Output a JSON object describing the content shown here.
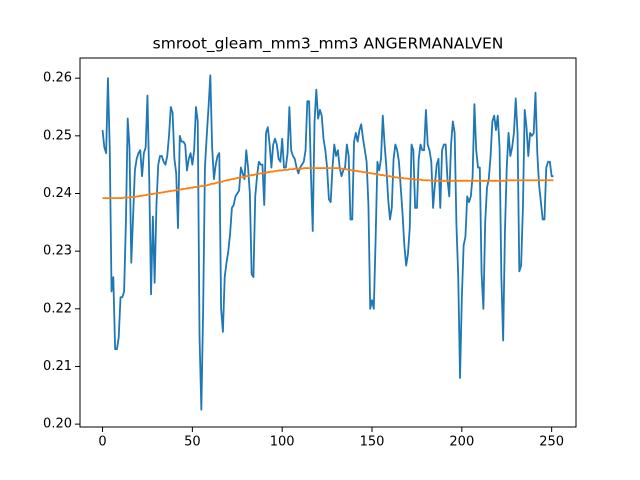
{
  "chart_data": {
    "type": "line",
    "title": "smroot_gleam_mm3_mm3 ANGERMANALVEN",
    "x": [
      0,
      1,
      2,
      3,
      4,
      5,
      6,
      7,
      8,
      9,
      10,
      11,
      12,
      13,
      14,
      15,
      16,
      17,
      18,
      19,
      20,
      21,
      22,
      23,
      24,
      25,
      26,
      27,
      28,
      29,
      30,
      31,
      32,
      33,
      34,
      35,
      36,
      37,
      38,
      39,
      40,
      41,
      42,
      43,
      44,
      45,
      46,
      47,
      48,
      49,
      50,
      51,
      52,
      53,
      54,
      55,
      56,
      57,
      58,
      59,
      60,
      61,
      62,
      63,
      64,
      65,
      66,
      67,
      68,
      69,
      70,
      71,
      72,
      73,
      74,
      75,
      76,
      77,
      78,
      79,
      80,
      81,
      82,
      83,
      84,
      85,
      86,
      87,
      88,
      89,
      90,
      91,
      92,
      93,
      94,
      95,
      96,
      97,
      98,
      99,
      100,
      101,
      102,
      103,
      104,
      105,
      106,
      107,
      108,
      109,
      110,
      111,
      112,
      113,
      114,
      115,
      116,
      117,
      118,
      119,
      120,
      121,
      122,
      123,
      124,
      125,
      126,
      127,
      128,
      129,
      130,
      131,
      132,
      133,
      134,
      135,
      136,
      137,
      138,
      139,
      140,
      141,
      142,
      143,
      144,
      145,
      146,
      147,
      148,
      149,
      150,
      151,
      152,
      153,
      154,
      155,
      156,
      157,
      158,
      159,
      160,
      161,
      162,
      163,
      164,
      165,
      166,
      167,
      168,
      169,
      170,
      171,
      172,
      173,
      174,
      175,
      176,
      177,
      178,
      179,
      180,
      181,
      182,
      183,
      184,
      185,
      186,
      187,
      188,
      189,
      190,
      191,
      192,
      193,
      194,
      195,
      196,
      197,
      198,
      199,
      200,
      201,
      202,
      203,
      204,
      205,
      206,
      207,
      208,
      209,
      210,
      211,
      212,
      213,
      214,
      215,
      216,
      217,
      218,
      219,
      220,
      221,
      222,
      223,
      224,
      225,
      226,
      227,
      228,
      229,
      230,
      231,
      232,
      233,
      234,
      235,
      236,
      237,
      238,
      239,
      240,
      241,
      242,
      243,
      244,
      245,
      246,
      247,
      248,
      249,
      250,
      251
    ],
    "series": [
      {
        "color": "#1f77b4",
        "values": [
          0.251,
          0.248,
          0.247,
          0.26,
          0.248,
          0.223,
          0.2255,
          0.213,
          0.213,
          0.215,
          0.222,
          0.222,
          0.223,
          0.235,
          0.253,
          0.248,
          0.228,
          0.236,
          0.244,
          0.246,
          0.247,
          0.2475,
          0.243,
          0.247,
          0.248,
          0.257,
          0.2425,
          0.2225,
          0.236,
          0.2245,
          0.238,
          0.245,
          0.2465,
          0.2465,
          0.2455,
          0.245,
          0.2465,
          0.25,
          0.255,
          0.254,
          0.246,
          0.2435,
          0.234,
          0.25,
          0.249,
          0.249,
          0.2485,
          0.244,
          0.246,
          0.247,
          0.245,
          0.2475,
          0.255,
          0.2525,
          0.215,
          0.2025,
          0.22,
          0.2445,
          0.25,
          0.255,
          0.2605,
          0.248,
          0.2425,
          0.245,
          0.2465,
          0.247,
          0.22,
          0.216,
          0.2255,
          0.228,
          0.23,
          0.233,
          0.2375,
          0.238,
          0.2395,
          0.24,
          0.2405,
          0.2445,
          0.2435,
          0.2425,
          0.2475,
          0.2445,
          0.24,
          0.226,
          0.2255,
          0.2395,
          0.243,
          0.2455,
          0.245,
          0.245,
          0.238,
          0.2505,
          0.2515,
          0.2485,
          0.2445,
          0.2485,
          0.2495,
          0.2485,
          0.246,
          0.2455,
          0.2495,
          0.2445,
          0.2445,
          0.247,
          0.255,
          0.2475,
          0.2465,
          0.246,
          0.2445,
          0.2435,
          0.2445,
          0.245,
          0.2455,
          0.2475,
          0.256,
          0.256,
          0.2435,
          0.2335,
          0.2525,
          0.258,
          0.253,
          0.2545,
          0.2535,
          0.2495,
          0.2475,
          0.2445,
          0.239,
          0.2385,
          0.2445,
          0.2485,
          0.2465,
          0.2475,
          0.2445,
          0.243,
          0.244,
          0.2445,
          0.2485,
          0.2465,
          0.2355,
          0.2355,
          0.249,
          0.2505,
          0.249,
          0.251,
          0.252,
          0.2495,
          0.2475,
          0.2455,
          0.238,
          0.22,
          0.2215,
          0.22,
          0.232,
          0.2455,
          0.244,
          0.246,
          0.2535,
          0.2485,
          0.2445,
          0.239,
          0.2355,
          0.2375,
          0.246,
          0.2485,
          0.2475,
          0.2455,
          0.241,
          0.2365,
          0.231,
          0.2275,
          0.2295,
          0.234,
          0.2485,
          0.2475,
          0.2375,
          0.2375,
          0.246,
          0.2485,
          0.2475,
          0.2475,
          0.2545,
          0.2485,
          0.2475,
          0.2455,
          0.2375,
          0.2415,
          0.245,
          0.246,
          0.2375,
          0.2475,
          0.2485,
          0.2485,
          0.2425,
          0.2395,
          0.2485,
          0.2525,
          0.2505,
          0.2345,
          0.2255,
          0.208,
          0.222,
          0.231,
          0.2325,
          0.2395,
          0.2385,
          0.2395,
          0.243,
          0.2555,
          0.2475,
          0.2445,
          0.2445,
          0.226,
          0.22,
          0.235,
          0.241,
          0.2425,
          0.2465,
          0.2525,
          0.2535,
          0.251,
          0.2535,
          0.248,
          0.2255,
          0.2145,
          0.2335,
          0.2445,
          0.2505,
          0.2465,
          0.248,
          0.2505,
          0.2565,
          0.2505,
          0.2265,
          0.2275,
          0.2375,
          0.2545,
          0.2515,
          0.2465,
          0.2505,
          0.25,
          0.2505,
          0.2575,
          0.247,
          0.2415,
          0.2385,
          0.2355,
          0.2355,
          0.2445,
          0.2455,
          0.2455,
          0.243,
          0.243
        ]
      },
      {
        "color": "#ff7f0e",
        "values": [
          0.2392,
          0.2392,
          0.2392,
          0.2392,
          0.2392,
          0.2392,
          0.2392,
          0.2392,
          0.2392,
          0.2392,
          0.2392,
          0.2392,
          0.2393,
          0.2393,
          0.2393,
          0.2393,
          0.2394,
          0.2394,
          0.2394,
          0.2395,
          0.2395,
          0.2396,
          0.2396,
          0.2397,
          0.2397,
          0.2398,
          0.2398,
          0.2399,
          0.2399,
          0.24,
          0.24,
          0.2401,
          0.2401,
          0.2402,
          0.2402,
          0.2403,
          0.2403,
          0.2404,
          0.2404,
          0.2405,
          0.2405,
          0.2406,
          0.2406,
          0.2407,
          0.2407,
          0.2408,
          0.2408,
          0.2409,
          0.2409,
          0.241,
          0.241,
          0.2411,
          0.2411,
          0.2412,
          0.2412,
          0.2413,
          0.2413,
          0.2414,
          0.2414,
          0.2415,
          0.2416,
          0.2417,
          0.2417,
          0.2418,
          0.2419,
          0.242,
          0.242,
          0.2421,
          0.2422,
          0.2423,
          0.2423,
          0.2424,
          0.2425,
          0.2425,
          0.2426,
          0.2427,
          0.2427,
          0.2428,
          0.2428,
          0.2429,
          0.243,
          0.243,
          0.2431,
          0.2432,
          0.2432,
          0.2433,
          0.2434,
          0.2434,
          0.2435,
          0.2435,
          0.2436,
          0.2436,
          0.2437,
          0.2437,
          0.2438,
          0.2438,
          0.2439,
          0.2439,
          0.244,
          0.244,
          0.244,
          0.2441,
          0.2441,
          0.2441,
          0.2442,
          0.2442,
          0.2442,
          0.2443,
          0.2443,
          0.2443,
          0.2443,
          0.2443,
          0.2444,
          0.2444,
          0.2444,
          0.2444,
          0.2444,
          0.2444,
          0.2444,
          0.2444,
          0.2444,
          0.2444,
          0.2444,
          0.2444,
          0.2444,
          0.2444,
          0.2444,
          0.2444,
          0.2444,
          0.2444,
          0.2444,
          0.2444,
          0.2443,
          0.2443,
          0.2443,
          0.2442,
          0.2442,
          0.2441,
          0.2441,
          0.244,
          0.244,
          0.2439,
          0.2439,
          0.2438,
          0.2438,
          0.2437,
          0.2437,
          0.2436,
          0.2436,
          0.2435,
          0.2435,
          0.2434,
          0.2434,
          0.2433,
          0.2433,
          0.2432,
          0.2432,
          0.2431,
          0.2431,
          0.243,
          0.243,
          0.2429,
          0.2429,
          0.2428,
          0.2428,
          0.2427,
          0.2427,
          0.2427,
          0.2426,
          0.2426,
          0.2426,
          0.2425,
          0.2425,
          0.2425,
          0.2424,
          0.2424,
          0.2424,
          0.2424,
          0.2423,
          0.2423,
          0.2423,
          0.2423,
          0.2423,
          0.2422,
          0.2422,
          0.2422,
          0.2422,
          0.2422,
          0.2422,
          0.2422,
          0.2422,
          0.2422,
          0.2422,
          0.2422,
          0.2422,
          0.2422,
          0.2422,
          0.2422,
          0.2422,
          0.2422,
          0.2422,
          0.2422,
          0.2422,
          0.2422,
          0.2422,
          0.2422,
          0.2422,
          0.2422,
          0.2422,
          0.2422,
          0.2422,
          0.2422,
          0.2422,
          0.2422,
          0.2422,
          0.2422,
          0.2422,
          0.2422,
          0.2422,
          0.2422,
          0.2422,
          0.2422,
          0.2422,
          0.2422,
          0.2422,
          0.2423,
          0.2423,
          0.2423,
          0.2423,
          0.2423,
          0.2423,
          0.2423,
          0.2423,
          0.2423,
          0.2423,
          0.2423,
          0.2423,
          0.2423,
          0.2423,
          0.2423,
          0.2423,
          0.2423,
          0.2423,
          0.2423,
          0.2423,
          0.2423,
          0.2423,
          0.2423,
          0.2423,
          0.2423,
          0.2423,
          0.2423
        ]
      }
    ],
    "xlim": [
      -12.55,
      263.55
    ],
    "xticks": [
      0,
      50,
      100,
      150,
      200,
      250
    ],
    "ylim": [
      0.1995,
      0.2635
    ],
    "yticks": [
      {
        "value": 0.2,
        "label": "0.20"
      },
      0.21,
      0.22,
      0.23,
      0.24,
      0.25,
      0.26
    ],
    "grid": false
  }
}
